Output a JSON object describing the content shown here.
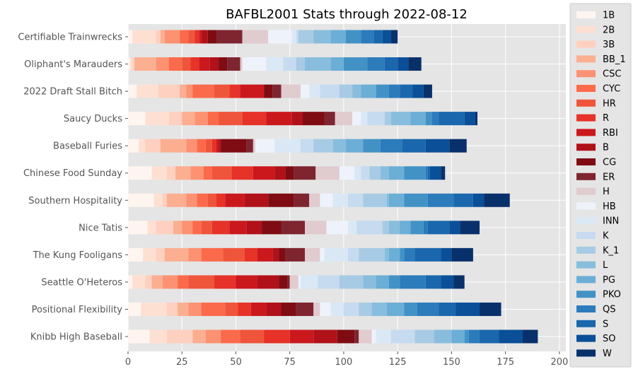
{
  "chart_data": {
    "type": "bar",
    "orientation": "horizontal",
    "stacked": true,
    "title": "BAFBL2001 Stats through 2022-08-12",
    "xlabel": "",
    "ylabel": "",
    "xlim": [
      0,
      203
    ],
    "xticks": [
      0,
      25,
      50,
      75,
      100,
      125,
      150,
      175,
      200
    ],
    "grid": true,
    "legend_position": "right",
    "categories": [
      "Knibb High Baseball",
      "Positional Flexibility",
      "Seattle O'Heteros",
      "The Kung Fooligans",
      "Nice Tatis",
      "Southern Hospitality",
      "Chinese Food Sunday",
      "Baseball Furies",
      "Saucy Ducks",
      "2022 Draft Stall Bitch",
      "Oliphant's Marauders",
      "Certifiable Trainwrecks"
    ],
    "series": [
      {
        "name": "1B",
        "color": "#fff5f0",
        "values": [
          10,
          6,
          2,
          7,
          9,
          12,
          11,
          5,
          8,
          4,
          1,
          2
        ]
      },
      {
        "name": "2B",
        "color": "#fee0d2",
        "values": [
          8,
          12,
          6,
          6,
          4,
          4,
          7,
          3,
          11,
          10,
          1,
          11
        ]
      },
      {
        "name": "3B",
        "color": "#fdd0c0",
        "values": [
          12,
          5,
          3,
          4,
          8,
          2,
          4,
          7,
          6,
          10,
          1,
          2
        ]
      },
      {
        "name": "BB_1",
        "color": "#fcae91",
        "values": [
          6,
          5,
          5,
          11,
          4,
          9,
          7,
          12,
          6,
          3,
          10,
          2
        ]
      },
      {
        "name": "CSC",
        "color": "#fc9272",
        "values": [
          7,
          6,
          7,
          6,
          5,
          5,
          6,
          5,
          6,
          3,
          6,
          7
        ]
      },
      {
        "name": "CYC",
        "color": "#fb6a4a",
        "values": [
          9,
          11,
          5,
          10,
          4,
          5,
          4,
          4,
          5,
          10,
          6,
          4
        ]
      },
      {
        "name": "HR",
        "color": "#ef553b",
        "values": [
          11,
          6,
          12,
          10,
          5,
          4,
          9,
          3,
          11,
          7,
          4,
          3
        ]
      },
      {
        "name": "R",
        "color": "#e63228",
        "values": [
          12,
          6,
          10,
          6,
          8,
          4,
          10,
          2,
          11,
          5,
          4,
          2
        ]
      },
      {
        "name": "RBI",
        "color": "#cb181d",
        "values": [
          11,
          7,
          10,
          7,
          8,
          9,
          10,
          1,
          12,
          11,
          5,
          1
        ]
      },
      {
        "name": "B",
        "color": "#b11119",
        "values": [
          11,
          7,
          10,
          3,
          7,
          11,
          5,
          1,
          5,
          0,
          4,
          3
        ]
      },
      {
        "name": "CG",
        "color": "#7f0c13",
        "values": [
          8,
          7,
          4,
          3,
          9,
          12,
          4,
          12,
          10,
          4,
          4,
          4
        ]
      },
      {
        "name": "ER",
        "color": "#7e2530",
        "values": [
          2,
          8,
          1,
          9,
          11,
          7,
          10,
          3,
          5,
          4,
          6,
          12
        ]
      },
      {
        "name": "H",
        "color": "#e0cbcf",
        "values": [
          6,
          3,
          4,
          7,
          10,
          5,
          11,
          1,
          8,
          9,
          1,
          12
        ]
      },
      {
        "name": "HB",
        "color": "#eef3fb",
        "values": [
          2,
          5,
          1,
          2,
          10,
          6,
          7,
          9,
          4,
          4,
          11,
          11
        ]
      },
      {
        "name": "INN",
        "color": "#dae8f6",
        "values": [
          7,
          6,
          8,
          11,
          4,
          7,
          3,
          12,
          3,
          5,
          8,
          2
        ]
      },
      {
        "name": "K",
        "color": "#c6dbef",
        "values": [
          11,
          7,
          10,
          5,
          12,
          7,
          4,
          6,
          8,
          9,
          6,
          1
        ]
      },
      {
        "name": "K_1",
        "color": "#a7cbe4",
        "values": [
          9,
          6,
          11,
          12,
          3,
          11,
          5,
          9,
          3,
          6,
          4,
          7
        ]
      },
      {
        "name": "L",
        "color": "#88bddd",
        "values": [
          8,
          7,
          6,
          2,
          5,
          1,
          4,
          6,
          9,
          4,
          12,
          8
        ]
      },
      {
        "name": "PG",
        "color": "#6baed6",
        "values": [
          6,
          8,
          6,
          5,
          5,
          7,
          7,
          8,
          7,
          7,
          6,
          7
        ]
      },
      {
        "name": "PKO",
        "color": "#4292c6",
        "values": [
          2,
          6,
          5,
          2,
          6,
          11,
          10,
          8,
          3,
          6,
          11,
          7
        ]
      },
      {
        "name": "QS",
        "color": "#2c7bbb",
        "values": [
          5,
          10,
          12,
          5,
          2,
          12,
          1,
          10,
          3,
          5,
          8,
          6
        ]
      },
      {
        "name": "S",
        "color": "#1a67ad",
        "values": [
          9,
          8,
          7,
          12,
          10,
          9,
          1,
          11,
          12,
          6,
          6,
          4
        ]
      },
      {
        "name": "SO",
        "color": "#0a4f98",
        "values": [
          11,
          11,
          6,
          5,
          5,
          5,
          5,
          11,
          5,
          5,
          5,
          4
        ]
      },
      {
        "name": "W",
        "color": "#08306b",
        "values": [
          7,
          10,
          5,
          10,
          9,
          12,
          2,
          8,
          1,
          4,
          6,
          3
        ]
      }
    ]
  }
}
